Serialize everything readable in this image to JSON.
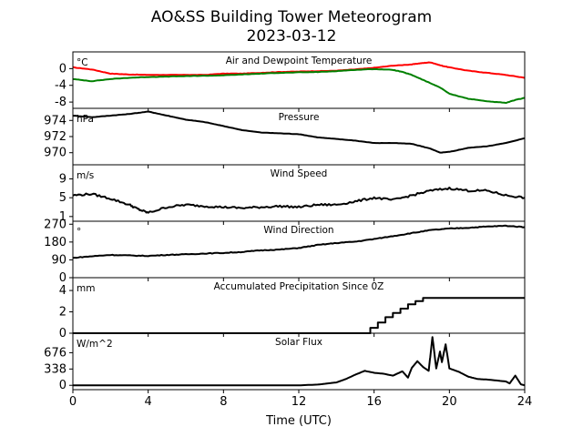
{
  "figure": {
    "title_line1": "AO&SS Building Tower Meteorogram",
    "title_line2": "2023-03-12",
    "xlabel": "Time (UTC)",
    "xlim": [
      0,
      24
    ],
    "xticks": [
      0,
      4,
      8,
      12,
      16,
      20,
      24
    ]
  },
  "chart_data": [
    {
      "type": "line",
      "title": "Air and Dewpoint Temperature",
      "unit_label": "°C",
      "ylim": [
        -9.5,
        4
      ],
      "yticks": [
        -8,
        -4,
        0
      ],
      "series": [
        {
          "color": "#ff0000",
          "x": [
            0,
            1,
            2,
            3,
            4,
            5,
            6,
            7,
            8,
            9,
            10,
            11,
            12,
            13,
            14,
            15,
            16,
            17,
            18,
            18.5,
            19,
            19.5,
            20,
            21,
            22,
            23,
            24
          ],
          "y": [
            0.3,
            -0.2,
            -1.2,
            -1.4,
            -1.5,
            -1.5,
            -1.5,
            -1.5,
            -1.2,
            -1.2,
            -1.0,
            -0.8,
            -0.7,
            -0.6,
            -0.5,
            -0.2,
            0.2,
            0.7,
            1.0,
            1.3,
            1.5,
            0.8,
            0.3,
            -0.5,
            -1.0,
            -1.5,
            -2.2
          ]
        },
        {
          "color": "#008000",
          "x": [
            0,
            1,
            2,
            3,
            4,
            5,
            6,
            7,
            8,
            9,
            10,
            11,
            12,
            13,
            14,
            15,
            16,
            17,
            17.5,
            18,
            18.5,
            19,
            19.5,
            20,
            21,
            22,
            23,
            23.5,
            24
          ],
          "y": [
            -2.5,
            -3.0,
            -2.5,
            -2.2,
            -2.0,
            -1.9,
            -1.8,
            -1.7,
            -1.6,
            -1.4,
            -1.2,
            -1.0,
            -0.9,
            -0.8,
            -0.6,
            -0.3,
            -0.1,
            -0.3,
            -0.8,
            -1.5,
            -2.5,
            -3.5,
            -4.5,
            -6.0,
            -7.2,
            -7.8,
            -8.2,
            -7.5,
            -7.0
          ]
        }
      ]
    },
    {
      "type": "line",
      "title": "Pressure",
      "unit_label": "hPa",
      "ylim": [
        968.5,
        975.5
      ],
      "yticks": [
        970,
        972,
        974
      ],
      "series": [
        {
          "color": "#000000",
          "x": [
            0,
            1,
            2,
            3,
            4,
            5,
            6,
            7,
            8,
            9,
            10,
            11,
            12,
            13,
            14,
            15,
            16,
            17,
            18,
            19,
            19.5,
            20,
            21,
            22,
            23,
            24
          ],
          "y": [
            974.6,
            974.4,
            974.6,
            974.8,
            975.1,
            974.6,
            974.1,
            973.8,
            973.3,
            972.8,
            972.5,
            972.4,
            972.3,
            971.9,
            971.7,
            971.5,
            971.2,
            971.2,
            971.1,
            970.5,
            970.0,
            970.1,
            970.6,
            970.8,
            971.2,
            971.8
          ]
        }
      ]
    },
    {
      "type": "line",
      "title": "Wind Speed",
      "unit_label": "m/s",
      "ylim": [
        0,
        12
      ],
      "yticks": [
        1,
        5,
        9
      ],
      "series": [
        {
          "color": "#000000",
          "x": [
            0,
            1,
            2,
            3,
            3.5,
            4,
            5,
            6,
            7,
            8,
            9,
            10,
            11,
            12,
            13,
            14,
            15,
            16,
            17,
            18,
            19,
            20,
            21,
            22,
            23,
            24
          ],
          "y": [
            5.5,
            5.8,
            4.8,
            3.5,
            2.5,
            1.8,
            3.0,
            3.5,
            3.2,
            3.0,
            2.8,
            3.0,
            3.2,
            3.0,
            3.5,
            3.5,
            4.2,
            5.0,
            4.5,
            5.5,
            6.5,
            7.0,
            6.5,
            6.5,
            5.5,
            5.0
          ]
        }
      ]
    },
    {
      "type": "line",
      "title": "Wind Direction",
      "unit_label": "°",
      "ylim": [
        0,
        285
      ],
      "yticks": [
        0,
        90,
        180,
        270
      ],
      "series": [
        {
          "color": "#000000",
          "x": [
            0,
            1,
            2,
            3,
            4,
            5,
            6,
            7,
            8,
            9,
            10,
            11,
            12,
            13,
            14,
            15,
            16,
            17,
            18,
            19,
            20,
            21,
            22,
            23,
            24
          ],
          "y": [
            100,
            108,
            115,
            112,
            110,
            115,
            118,
            122,
            125,
            130,
            138,
            142,
            150,
            165,
            175,
            182,
            195,
            210,
            225,
            240,
            248,
            252,
            258,
            262,
            255
          ]
        }
      ]
    },
    {
      "type": "line",
      "title": "Accumulated Precipitation Since 0Z",
      "unit_label": "mm",
      "ylim": [
        0,
        5.2
      ],
      "yticks": [
        0,
        2,
        4
      ],
      "series": [
        {
          "color": "#000000",
          "x": [
            0,
            15.4,
            15.8,
            16.2,
            16.6,
            17.0,
            17.4,
            17.8,
            18.2,
            18.6,
            24
          ],
          "y": [
            0,
            0,
            0.5,
            1.0,
            1.5,
            1.9,
            2.3,
            2.7,
            3.0,
            3.3,
            3.3
          ]
        }
      ]
    },
    {
      "type": "line",
      "title": "Solar Flux",
      "unit_label": "W/m^2",
      "ylim": [
        -90,
        1080
      ],
      "yticks": [
        0,
        338,
        676
      ],
      "series": [
        {
          "color": "#000000",
          "x": [
            0,
            12,
            13,
            14,
            14.5,
            15,
            15.5,
            16,
            16.5,
            17,
            17.5,
            17.8,
            18,
            18.3,
            18.6,
            18.9,
            19.0,
            19.1,
            19.3,
            19.5,
            19.6,
            19.8,
            20.0,
            20.5,
            21,
            21.5,
            22,
            23,
            23.2,
            23.5,
            23.8,
            24
          ],
          "y": [
            0,
            0,
            15,
            60,
            130,
            220,
            300,
            260,
            240,
            200,
            290,
            160,
            360,
            500,
            380,
            300,
            650,
            1000,
            350,
            700,
            480,
            850,
            350,
            280,
            180,
            130,
            120,
            80,
            40,
            200,
            20,
            0
          ]
        }
      ]
    }
  ]
}
